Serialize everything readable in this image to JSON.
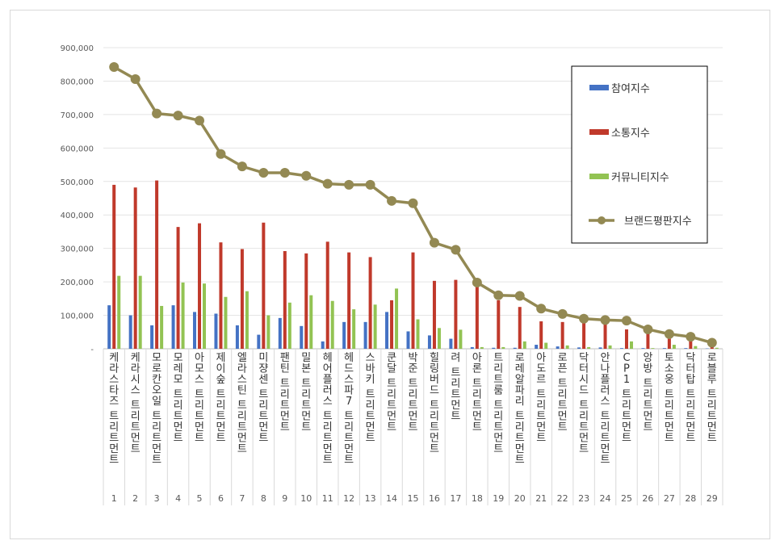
{
  "chart_data": {
    "type": "bar+line",
    "ylim": [
      0,
      900000
    ],
    "yticks": [
      "-",
      "100,000",
      "200,000",
      "300,000",
      "400,000",
      "500,000",
      "600,000",
      "700,000",
      "800,000",
      "900,000"
    ],
    "ranks": [
      "1",
      "2",
      "3",
      "4",
      "5",
      "6",
      "7",
      "8",
      "9",
      "10",
      "11",
      "12",
      "13",
      "14",
      "15",
      "16",
      "17",
      "18",
      "19",
      "20",
      "21",
      "22",
      "23",
      "24",
      "25",
      "26",
      "27",
      "28",
      "29"
    ],
    "categories": [
      "케라스타즈 트리트먼트",
      "케라시스 트리트먼트",
      "모로칸오일 트리트먼트",
      "모레모 트리트먼트",
      "아모스 트리트먼트",
      "제이숲 트리트먼트",
      "엘라스틴 트리트먼트",
      "미쟝센 트리트먼트",
      "팬틴 트리트먼트",
      "밀본 트리트먼트",
      "헤어플러스 트리트먼트",
      "헤드스파7 트리트먼트",
      "스바키 트리트먼트",
      "쿤달 트리트먼트",
      "박준 트리트먼트",
      "힐링버드 트리트먼트",
      "려 트리트먼트",
      "아론 트리트먼트",
      "트리트룸 트리트먼트",
      "로레알파리 트리트먼트",
      "아도르 트리트먼트",
      "로픈 트리트먼트",
      "닥터시드 트리트먼트",
      "안나플러스 트리트먼트",
      "CP1 트리트먼트",
      "앙방 트리트먼트",
      "토소웅 트리트먼트",
      "닥터탑 트리트먼트",
      "로블루 트리트먼트"
    ],
    "series": [
      {
        "name": "참여지수",
        "kind": "bar",
        "color": "#4472c4",
        "values": [
          130000,
          100000,
          70000,
          130000,
          110000,
          105000,
          70000,
          42000,
          92000,
          68000,
          22000,
          80000,
          80000,
          110000,
          52000,
          40000,
          30000,
          5000,
          3000,
          3000,
          12000,
          7000,
          4000,
          4000,
          2000,
          2000,
          2000,
          2000,
          1000
        ]
      },
      {
        "name": "소통지수",
        "kind": "bar",
        "color": "#c0392b",
        "values": [
          490000,
          482000,
          503000,
          364000,
          375000,
          318000,
          298000,
          377000,
          292000,
          285000,
          320000,
          288000,
          274000,
          145000,
          288000,
          203000,
          206000,
          185000,
          145000,
          125000,
          82000,
          80000,
          80000,
          75000,
          58000,
          45000,
          30000,
          25000,
          10000
        ]
      },
      {
        "name": "커뮤니티지수",
        "kind": "bar",
        "color": "#92c353",
        "values": [
          218000,
          218000,
          128000,
          198000,
          195000,
          155000,
          172000,
          100000,
          138000,
          160000,
          143000,
          118000,
          132000,
          180000,
          88000,
          62000,
          57000,
          5000,
          5000,
          22000,
          18000,
          10000,
          5000,
          10000,
          22000,
          2000,
          12000,
          8000,
          3000
        ]
      },
      {
        "name": "브랜드평판지수",
        "kind": "line",
        "color": "#938953",
        "values": [
          842000,
          806000,
          703000,
          697000,
          682000,
          582000,
          545000,
          526000,
          526000,
          517000,
          493000,
          490000,
          490000,
          442000,
          435000,
          317000,
          296000,
          198000,
          160000,
          158000,
          120000,
          104000,
          90000,
          86000,
          84000,
          58000,
          44000,
          36000,
          18000
        ]
      }
    ]
  }
}
